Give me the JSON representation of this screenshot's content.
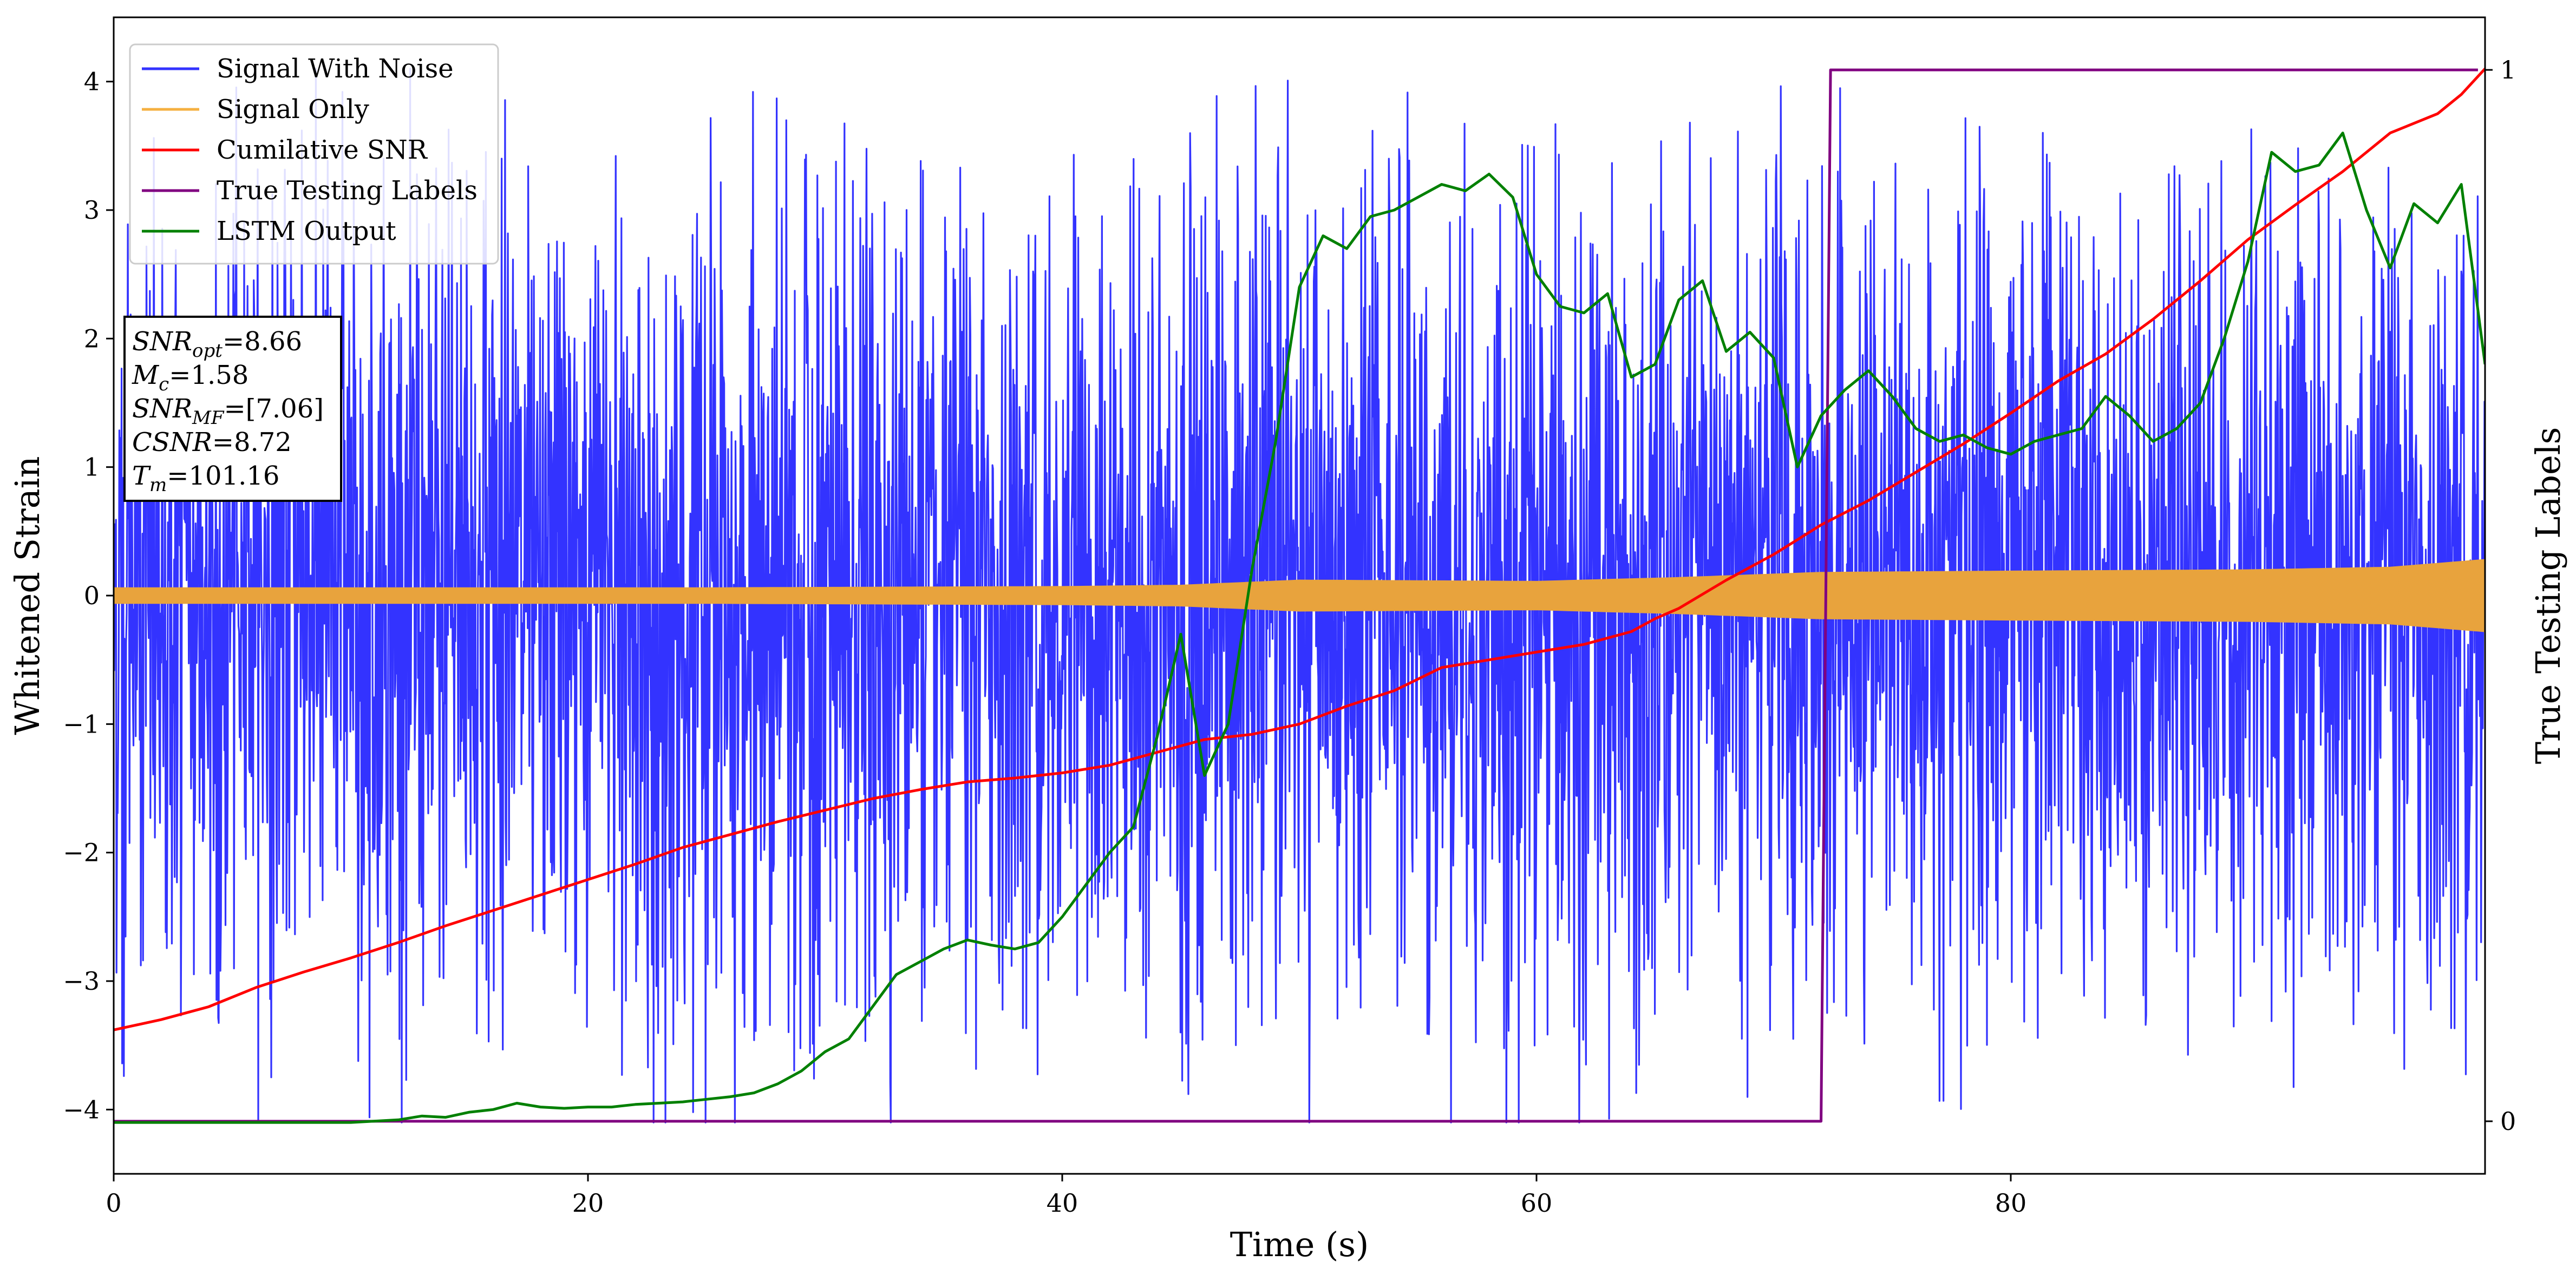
{
  "chart_data": {
    "type": "line",
    "xlabel": "Time (s)",
    "ylabel": "Whitened Strain",
    "y2label": "True Testing Labels",
    "xlim": [
      0,
      100
    ],
    "ylim": [
      -4.5,
      4.5
    ],
    "y2lim": [
      -0.05,
      1.05
    ],
    "xticks": [
      0,
      20,
      40,
      60,
      80
    ],
    "yticks": [
      -4,
      -3,
      -2,
      -1,
      0,
      1,
      2,
      3,
      4
    ],
    "y2ticks": [
      0,
      1
    ],
    "legend_position": "top-left",
    "legend": [
      {
        "label": "Signal With Noise",
        "color": "#3333ff"
      },
      {
        "label": "Signal Only",
        "color": "#f5b041"
      },
      {
        "label": "Cumilative SNR",
        "color": "#ff0000"
      },
      {
        "label": "True Testing Labels",
        "color": "#800080"
      },
      {
        "label": "LSTM Output",
        "color": "#008000"
      }
    ],
    "info_box": [
      {
        "var": "SNR",
        "sub": "opt",
        "value": "=8.66"
      },
      {
        "var": "M",
        "sub": "c",
        "value": "=1.58"
      },
      {
        "var": "SNR",
        "sub": "MF",
        "value": "=[7.06]"
      },
      {
        "var": "CSNR",
        "sub": "",
        "value": "=8.72"
      },
      {
        "var": "T",
        "sub": "m",
        "value": "=101.16"
      }
    ],
    "series": [
      {
        "name": "Signal With Noise",
        "axis": "left",
        "color": "#3333ff",
        "style": "noise",
        "band_amplitude": [
          [
            0,
            1.5
          ],
          [
            100,
            1.5
          ]
        ],
        "max_value": 4.1,
        "min_value": -4.1
      },
      {
        "name": "Signal Only",
        "axis": "left",
        "color": "#e8a33d",
        "style": "band",
        "amplitude": [
          [
            0,
            0.06
          ],
          [
            25,
            0.06
          ],
          [
            40,
            0.07
          ],
          [
            45,
            0.08
          ],
          [
            50,
            0.12
          ],
          [
            60,
            0.11
          ],
          [
            66,
            0.14
          ],
          [
            72,
            0.18
          ],
          [
            80,
            0.19
          ],
          [
            90,
            0.2
          ],
          [
            96,
            0.22
          ],
          [
            100,
            0.28
          ]
        ]
      },
      {
        "name": "Cumilative SNR",
        "axis": "left",
        "color": "#ff0000",
        "x": [
          0,
          2,
          4,
          6,
          8,
          10,
          12,
          14,
          16,
          18,
          20,
          22,
          24,
          26,
          28,
          30,
          32,
          34,
          36,
          38,
          40,
          42,
          44,
          46,
          48,
          50,
          52,
          54,
          56,
          58,
          60,
          62,
          64,
          65,
          66,
          68,
          70,
          72,
          74,
          76,
          78,
          80,
          82,
          84,
          86,
          88,
          90,
          92,
          94,
          96,
          98,
          99,
          100
        ],
        "y": [
          -3.38,
          -3.3,
          -3.2,
          -3.05,
          -2.93,
          -2.82,
          -2.7,
          -2.57,
          -2.45,
          -2.33,
          -2.21,
          -2.09,
          -1.96,
          -1.86,
          -1.76,
          -1.67,
          -1.58,
          -1.51,
          -1.45,
          -1.42,
          -1.38,
          -1.32,
          -1.22,
          -1.12,
          -1.08,
          -1.0,
          -0.86,
          -0.74,
          -0.56,
          -0.5,
          -0.44,
          -0.38,
          -0.28,
          -0.18,
          -0.1,
          0.12,
          0.32,
          0.55,
          0.74,
          0.96,
          1.18,
          1.42,
          1.67,
          1.88,
          2.15,
          2.45,
          2.77,
          3.04,
          3.3,
          3.6,
          3.75,
          3.9,
          4.1
        ]
      },
      {
        "name": "True Testing Labels",
        "axis": "right",
        "color": "#800080",
        "x": [
          0,
          72.0,
          72.4,
          99.7
        ],
        "y": [
          0,
          0,
          1,
          1
        ]
      },
      {
        "name": "LSTM Output",
        "axis": "left",
        "color": "#008000",
        "x": [
          0,
          10,
          12,
          13,
          14,
          15,
          16,
          17,
          18,
          19,
          20,
          21,
          22,
          23,
          24,
          25,
          26,
          27,
          28,
          29,
          30,
          31,
          32,
          33,
          34,
          35,
          36,
          37,
          38,
          39,
          40,
          41,
          42,
          43,
          44,
          45,
          46,
          47,
          48,
          49,
          50,
          51,
          52,
          53,
          54,
          55,
          56,
          57,
          58,
          59,
          60,
          61,
          62,
          63,
          64,
          65,
          66,
          67,
          68,
          69,
          70,
          71,
          72,
          73,
          74,
          75,
          76,
          77,
          78,
          79,
          80,
          81,
          82,
          83,
          84,
          85,
          86,
          87,
          88,
          89,
          90,
          91,
          92,
          93,
          94,
          95,
          96,
          97,
          98,
          99,
          100
        ],
        "y": [
          -4.1,
          -4.1,
          -4.08,
          -4.05,
          -4.06,
          -4.02,
          -4.0,
          -3.95,
          -3.98,
          -3.99,
          -3.98,
          -3.98,
          -3.96,
          -3.95,
          -3.94,
          -3.92,
          -3.9,
          -3.87,
          -3.8,
          -3.7,
          -3.55,
          -3.45,
          -3.2,
          -2.95,
          -2.85,
          -2.75,
          -2.68,
          -2.72,
          -2.75,
          -2.7,
          -2.5,
          -2.25,
          -2.0,
          -1.8,
          -1.1,
          -0.3,
          -1.4,
          -1.0,
          0.2,
          1.2,
          2.4,
          2.8,
          2.7,
          2.95,
          3.0,
          3.1,
          3.2,
          3.15,
          3.28,
          3.1,
          2.5,
          2.25,
          2.2,
          2.35,
          1.7,
          1.8,
          2.3,
          2.45,
          1.9,
          2.05,
          1.85,
          1.0,
          1.4,
          1.6,
          1.75,
          1.55,
          1.3,
          1.2,
          1.25,
          1.15,
          1.1,
          1.2,
          1.25,
          1.3,
          1.55,
          1.4,
          1.2,
          1.3,
          1.5,
          2.0,
          2.6,
          3.45,
          3.3,
          3.35,
          3.6,
          3.0,
          2.55,
          3.05,
          2.9,
          3.2,
          1.8
        ]
      }
    ]
  }
}
